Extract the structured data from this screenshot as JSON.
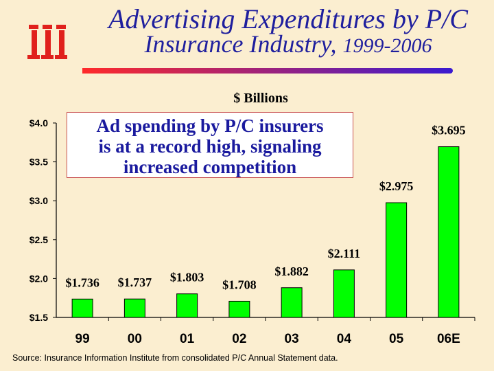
{
  "slide": {
    "title_line1": "Advertising Expenditures by P/C",
    "title_line2": "Insurance Industry,",
    "title_years": "1999-2006",
    "unit_label": "$ Billions",
    "callout": [
      "Ad spending by P/C insurers",
      "is at a record high, signaling",
      "increased competition"
    ],
    "source": "Source: Insurance Information Institute from consolidated P/C Annual Statement data.",
    "logo_icon": "iii-logo-icon",
    "colors": {
      "title": "#1f1f9e",
      "bar": "#00ff00",
      "background": "#fbeed0",
      "logo": "#e0201c"
    }
  },
  "chart_data": {
    "type": "bar",
    "categories": [
      "99",
      "00",
      "01",
      "02",
      "03",
      "04",
      "05",
      "06E"
    ],
    "values": [
      1.736,
      1.737,
      1.803,
      1.708,
      1.882,
      2.111,
      2.975,
      3.695
    ],
    "value_labels": [
      "$1.736",
      "$1.737",
      "$1.803",
      "$1.708",
      "$1.882",
      "$2.111",
      "$2.975",
      "$3.695"
    ],
    "ylabel": "$ Billions",
    "ylim": [
      1.5,
      4.0
    ],
    "yticks": [
      1.5,
      2.0,
      2.5,
      3.0,
      3.5,
      4.0
    ],
    "ytick_labels": [
      "$1.5",
      "$2.0",
      "$2.5",
      "$3.0",
      "$3.5",
      "$4.0"
    ],
    "grid": false,
    "legend": "none"
  }
}
